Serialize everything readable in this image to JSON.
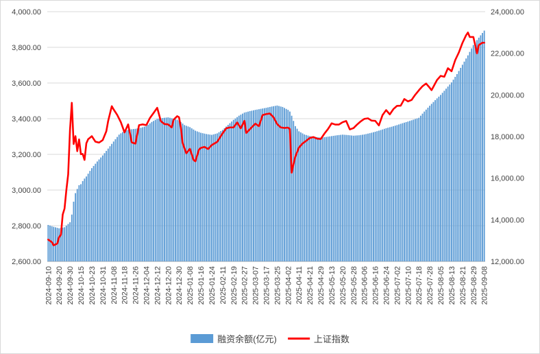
{
  "chart_data": {
    "type": "combo",
    "title": "",
    "n_points": 241,
    "x_tick_interval": 6,
    "x_labels": [
      "2024-09-10",
      "2024-09-20",
      "2024-09-30",
      "2024-10-15",
      "2024-10-23",
      "2024-10-31",
      "2024-11-08",
      "2024-11-18",
      "2024-11-26",
      "2024-12-04",
      "2024-12-12",
      "2024-12-20",
      "2024-12-30",
      "2025-01-08",
      "2025-01-16",
      "2025-01-24",
      "2025-02-11",
      "2025-02-19",
      "2025-02-27",
      "2025-03-07",
      "2025-03-17",
      "2025-03-25",
      "2025-04-02",
      "2025-04-11",
      "2025-04-21",
      "2025-04-29",
      "2025-05-13",
      "2025-05-20",
      "2025-05-28",
      "2025-06-06",
      "2025-06-16",
      "2025-06-24",
      "2025-07-02",
      "2025-07-10",
      "2025-07-18",
      "2025-07-28",
      "2025-08-05",
      "2025-08-13",
      "2025-08-21",
      "2025-08-29",
      "2025-09-08"
    ],
    "left_axis": {
      "min": 2600,
      "max": 4000,
      "step": 200,
      "tick_labels": [
        "2,600.00",
        "2,800.00",
        "3,000.00",
        "3,200.00",
        "3,400.00",
        "3,600.00",
        "3,800.00",
        "4,000.00"
      ]
    },
    "right_axis": {
      "min": 12000,
      "max": 24000,
      "step": 2000,
      "tick_labels": [
        "12,000.00",
        "14,000.00",
        "16,000.00",
        "18,000.00",
        "20,000.00",
        "22,000.00",
        "24,000.00"
      ]
    },
    "bar_series": {
      "name": "融资余额(亿元)",
      "axis": "right",
      "color": "#5b9bd5",
      "keyframes": [
        [
          0,
          13750
        ],
        [
          3,
          13660
        ],
        [
          6,
          13590
        ],
        [
          9,
          13640
        ],
        [
          12,
          13880
        ],
        [
          13,
          14250
        ],
        [
          14,
          14870
        ],
        [
          15,
          15280
        ],
        [
          16,
          15480
        ],
        [
          17,
          15660
        ],
        [
          18,
          15710
        ],
        [
          19,
          15860
        ],
        [
          20,
          15980
        ],
        [
          21,
          16080
        ],
        [
          24,
          16480
        ],
        [
          27,
          16800
        ],
        [
          30,
          17090
        ],
        [
          33,
          17420
        ],
        [
          36,
          17760
        ],
        [
          39,
          18090
        ],
        [
          42,
          18280
        ],
        [
          45,
          18340
        ],
        [
          48,
          18370
        ],
        [
          51,
          18420
        ],
        [
          54,
          18500
        ],
        [
          57,
          18700
        ],
        [
          60,
          18850
        ],
        [
          63,
          18890
        ],
        [
          66,
          18920
        ],
        [
          69,
          18860
        ],
        [
          72,
          18770
        ],
        [
          75,
          18550
        ],
        [
          78,
          18450
        ],
        [
          81,
          18280
        ],
        [
          84,
          18180
        ],
        [
          87,
          18120
        ],
        [
          90,
          18080
        ],
        [
          93,
          18150
        ],
        [
          96,
          18320
        ],
        [
          99,
          18560
        ],
        [
          102,
          18800
        ],
        [
          105,
          19000
        ],
        [
          108,
          19150
        ],
        [
          111,
          19220
        ],
        [
          114,
          19280
        ],
        [
          117,
          19330
        ],
        [
          120,
          19380
        ],
        [
          123,
          19440
        ],
        [
          126,
          19490
        ],
        [
          129,
          19420
        ],
        [
          132,
          19280
        ],
        [
          133,
          19200
        ],
        [
          134,
          19000
        ],
        [
          135,
          18750
        ],
        [
          136,
          18500
        ],
        [
          138,
          18250
        ],
        [
          141,
          18100
        ],
        [
          144,
          18020
        ],
        [
          147,
          17980
        ],
        [
          150,
          17950
        ],
        [
          153,
          17980
        ],
        [
          156,
          18020
        ],
        [
          159,
          18060
        ],
        [
          162,
          18090
        ],
        [
          165,
          18070
        ],
        [
          168,
          18040
        ],
        [
          171,
          18060
        ],
        [
          174,
          18100
        ],
        [
          177,
          18160
        ],
        [
          180,
          18230
        ],
        [
          183,
          18310
        ],
        [
          186,
          18400
        ],
        [
          189,
          18470
        ],
        [
          192,
          18550
        ],
        [
          195,
          18640
        ],
        [
          198,
          18720
        ],
        [
          201,
          18810
        ],
        [
          204,
          18900
        ],
        [
          207,
          19200
        ],
        [
          210,
          19480
        ],
        [
          213,
          19750
        ],
        [
          216,
          20000
        ],
        [
          219,
          20300
        ],
        [
          222,
          20600
        ],
        [
          225,
          21000
        ],
        [
          228,
          21450
        ],
        [
          231,
          21900
        ],
        [
          234,
          22400
        ],
        [
          237,
          22750
        ],
        [
          240,
          23090
        ]
      ]
    },
    "line_series": {
      "name": "上证指数",
      "axis": "left",
      "color": "#ff0000",
      "keyframes": [
        [
          0,
          2722
        ],
        [
          2,
          2708
        ],
        [
          3,
          2690
        ],
        [
          5,
          2700
        ],
        [
          6,
          2736
        ],
        [
          7,
          2749
        ],
        [
          8,
          2863
        ],
        [
          9,
          2896
        ],
        [
          10,
          3000
        ],
        [
          11,
          3088
        ],
        [
          12,
          3336
        ],
        [
          13,
          3489
        ],
        [
          14,
          3258
        ],
        [
          15,
          3302
        ],
        [
          16,
          3218
        ],
        [
          17,
          3284
        ],
        [
          18,
          3201
        ],
        [
          19,
          3202
        ],
        [
          20,
          3169
        ],
        [
          21,
          3262
        ],
        [
          22,
          3285
        ],
        [
          24,
          3302
        ],
        [
          26,
          3271
        ],
        [
          28,
          3266
        ],
        [
          30,
          3280
        ],
        [
          32,
          3330
        ],
        [
          33,
          3387
        ],
        [
          35,
          3470
        ],
        [
          36,
          3452
        ],
        [
          38,
          3421
        ],
        [
          40,
          3380
        ],
        [
          42,
          3323
        ],
        [
          44,
          3368
        ],
        [
          46,
          3267
        ],
        [
          48,
          3260
        ],
        [
          50,
          3364
        ],
        [
          52,
          3368
        ],
        [
          54,
          3364
        ],
        [
          56,
          3404
        ],
        [
          58,
          3432
        ],
        [
          60,
          3461
        ],
        [
          62,
          3386
        ],
        [
          64,
          3370
        ],
        [
          66,
          3368
        ],
        [
          68,
          3351
        ],
        [
          69,
          3394
        ],
        [
          71,
          3414
        ],
        [
          72,
          3408
        ],
        [
          73,
          3352
        ],
        [
          74,
          3263
        ],
        [
          76,
          3206
        ],
        [
          78,
          3231
        ],
        [
          80,
          3169
        ],
        [
          81,
          3161
        ],
        [
          83,
          3227
        ],
        [
          84,
          3236
        ],
        [
          86,
          3242
        ],
        [
          88,
          3230
        ],
        [
          90,
          3252
        ],
        [
          93,
          3270
        ],
        [
          96,
          3318
        ],
        [
          98,
          3346
        ],
        [
          100,
          3351
        ],
        [
          102,
          3351
        ],
        [
          104,
          3379
        ],
        [
          106,
          3346
        ],
        [
          108,
          3388
        ],
        [
          109,
          3320
        ],
        [
          111,
          3341
        ],
        [
          114,
          3372
        ],
        [
          116,
          3358
        ],
        [
          118,
          3420
        ],
        [
          120,
          3426
        ],
        [
          122,
          3429
        ],
        [
          124,
          3408
        ],
        [
          126,
          3370
        ],
        [
          128,
          3351
        ],
        [
          130,
          3348
        ],
        [
          132,
          3350
        ],
        [
          133,
          3342
        ],
        [
          134,
          3097
        ],
        [
          135,
          3145
        ],
        [
          136,
          3187
        ],
        [
          138,
          3238
        ],
        [
          140,
          3261
        ],
        [
          142,
          3276
        ],
        [
          144,
          3292
        ],
        [
          146,
          3297
        ],
        [
          148,
          3288
        ],
        [
          150,
          3286
        ],
        [
          152,
          3316
        ],
        [
          154,
          3342
        ],
        [
          156,
          3374
        ],
        [
          158,
          3367
        ],
        [
          160,
          3367
        ],
        [
          162,
          3380
        ],
        [
          164,
          3387
        ],
        [
          166,
          3340
        ],
        [
          168,
          3347
        ],
        [
          170,
          3367
        ],
        [
          172,
          3385
        ],
        [
          174,
          3399
        ],
        [
          176,
          3402
        ],
        [
          178,
          3389
        ],
        [
          180,
          3388
        ],
        [
          182,
          3362
        ],
        [
          184,
          3420
        ],
        [
          186,
          3448
        ],
        [
          188,
          3424
        ],
        [
          190,
          3454
        ],
        [
          192,
          3472
        ],
        [
          194,
          3473
        ],
        [
          196,
          3510
        ],
        [
          198,
          3497
        ],
        [
          200,
          3505
        ],
        [
          202,
          3534
        ],
        [
          204,
          3559
        ],
        [
          206,
          3582
        ],
        [
          208,
          3597
        ],
        [
          210,
          3573
        ],
        [
          211,
          3560
        ],
        [
          214,
          3617
        ],
        [
          216,
          3640
        ],
        [
          218,
          3635
        ],
        [
          220,
          3683
        ],
        [
          222,
          3666
        ],
        [
          224,
          3728
        ],
        [
          226,
          3771
        ],
        [
          228,
          3825
        ],
        [
          230,
          3868
        ],
        [
          231,
          3883
        ],
        [
          232,
          3858
        ],
        [
          234,
          3858
        ],
        [
          235,
          3813
        ],
        [
          236,
          3766
        ],
        [
          237,
          3813
        ],
        [
          239,
          3826
        ],
        [
          240,
          3826
        ]
      ]
    },
    "legend": [
      {
        "label": "融资余额(亿元)",
        "type": "bar",
        "color": "#5b9bd5"
      },
      {
        "label": "上证指数",
        "type": "line",
        "color": "#ff0000"
      }
    ],
    "grid": {
      "color": "#d9d9d9",
      "axis_color": "#a6a6a6",
      "text_color": "#404040"
    }
  }
}
